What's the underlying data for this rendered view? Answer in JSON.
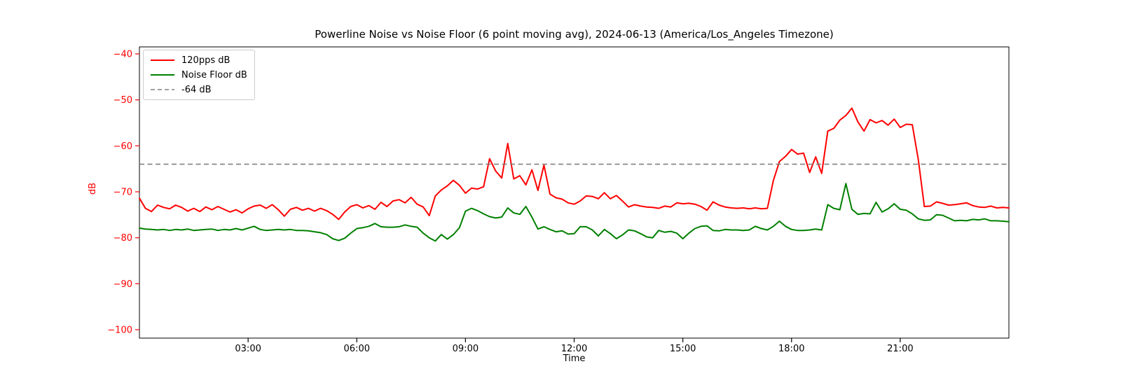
{
  "title": "Powerline Noise vs Noise Floor (6 point moving avg), 2024-06-13 (America/Los_Angeles Timezone)",
  "axes": {
    "x_label": "Time",
    "y_label": "dB",
    "x_ticks": [
      {
        "hour": 3,
        "label": "03:00"
      },
      {
        "hour": 6,
        "label": "06:00"
      },
      {
        "hour": 9,
        "label": "09:00"
      },
      {
        "hour": 12,
        "label": "12:00"
      },
      {
        "hour": 15,
        "label": "15:00"
      },
      {
        "hour": 18,
        "label": "18:00"
      },
      {
        "hour": 21,
        "label": "21:00"
      }
    ],
    "y_ticks": [
      -40,
      -50,
      -60,
      -70,
      -80,
      -90,
      -100
    ],
    "y_tick_color": "#ff0000",
    "x_tick_color": "#000000"
  },
  "legend": {
    "items": [
      {
        "label": "120pps dB",
        "color": "#ff0000",
        "dash": "solid"
      },
      {
        "label": "Noise Floor dB",
        "color": "#008000",
        "dash": "solid"
      },
      {
        "label": "-64 dB",
        "color": "#808080",
        "dash": "dashed"
      }
    ]
  },
  "chart_data": {
    "type": "line",
    "title": "Powerline Noise vs Noise Floor (6 point moving avg), 2024-06-13 (America/Los_Angeles Timezone)",
    "xlabel": "Time",
    "ylabel": "dB",
    "xlim_hours": [
      0,
      24
    ],
    "ylim": [
      -101.8,
      -38.5
    ],
    "grid": false,
    "legend_position": "upper-left",
    "x_start": "00:00",
    "x_interval_minutes": 10,
    "point_count": 145,
    "series": [
      {
        "name": "120pps dB",
        "color": "#ff0000",
        "style": "solid",
        "values": [
          -71.4,
          -73.6,
          -74.3,
          -72.9,
          -73.4,
          -73.7,
          -72.9,
          -73.4,
          -74.2,
          -73.6,
          -74.3,
          -73.3,
          -73.9,
          -73.2,
          -73.8,
          -74.4,
          -73.9,
          -74.6,
          -73.7,
          -73.1,
          -72.9,
          -73.6,
          -72.8,
          -73.9,
          -75.3,
          -73.8,
          -73.4,
          -74.0,
          -73.6,
          -74.2,
          -73.6,
          -74.1,
          -74.9,
          -76.0,
          -74.4,
          -73.2,
          -72.8,
          -73.5,
          -73.0,
          -73.8,
          -72.3,
          -73.2,
          -72.0,
          -71.7,
          -72.4,
          -71.2,
          -72.7,
          -73.3,
          -75.2,
          -70.9,
          -69.6,
          -68.7,
          -67.5,
          -68.6,
          -70.3,
          -69.2,
          -69.4,
          -68.9,
          -62.8,
          -65.5,
          -67.0,
          -59.5,
          -67.2,
          -66.5,
          -68.5,
          -65.2,
          -69.7,
          -64.2,
          -70.5,
          -71.3,
          -71.6,
          -72.4,
          -72.7,
          -72.0,
          -70.9,
          -71.0,
          -71.5,
          -70.2,
          -71.5,
          -70.8,
          -72.0,
          -73.3,
          -72.8,
          -73.1,
          -73.3,
          -73.4,
          -73.6,
          -73.1,
          -73.3,
          -72.4,
          -72.6,
          -72.5,
          -72.7,
          -73.2,
          -74.0,
          -72.2,
          -72.9,
          -73.3,
          -73.5,
          -73.6,
          -73.5,
          -73.7,
          -73.5,
          -73.7,
          -73.6,
          -67.5,
          -63.4,
          -62.3,
          -60.8,
          -61.8,
          -61.6,
          -65.8,
          -62.4,
          -66.0,
          -56.8,
          -56.2,
          -54.4,
          -53.4,
          -51.8,
          -54.8,
          -56.8,
          -54.3,
          -55.0,
          -54.5,
          -55.5,
          -54.2,
          -56.0,
          -55.3,
          -55.4,
          -63.0,
          -73.2,
          -73.1,
          -72.2,
          -72.5,
          -72.9,
          -72.8,
          -72.6,
          -72.4,
          -73.0,
          -73.3,
          -73.4,
          -73.1,
          -73.5,
          -73.4,
          -73.5
        ]
      },
      {
        "name": "Noise Floor dB",
        "color": "#008000",
        "style": "solid",
        "values": [
          -77.9,
          -78.1,
          -78.2,
          -78.3,
          -78.2,
          -78.4,
          -78.2,
          -78.3,
          -78.1,
          -78.4,
          -78.3,
          -78.2,
          -78.1,
          -78.4,
          -78.2,
          -78.3,
          -78.0,
          -78.3,
          -77.9,
          -77.5,
          -78.2,
          -78.4,
          -78.3,
          -78.2,
          -78.3,
          -78.2,
          -78.4,
          -78.4,
          -78.5,
          -78.7,
          -78.9,
          -79.3,
          -80.2,
          -80.6,
          -80.1,
          -79.0,
          -78.0,
          -77.8,
          -77.5,
          -76.9,
          -77.6,
          -77.7,
          -77.7,
          -77.6,
          -77.2,
          -77.5,
          -77.7,
          -79.0,
          -80.0,
          -80.7,
          -79.3,
          -80.3,
          -79.3,
          -77.8,
          -74.2,
          -73.6,
          -74.1,
          -74.8,
          -75.4,
          -75.7,
          -75.5,
          -73.5,
          -74.6,
          -74.9,
          -73.2,
          -75.5,
          -78.1,
          -77.6,
          -78.2,
          -78.7,
          -78.5,
          -79.2,
          -79.1,
          -77.6,
          -77.6,
          -78.3,
          -79.6,
          -78.2,
          -79.1,
          -80.2,
          -79.4,
          -78.3,
          -78.5,
          -79.1,
          -79.8,
          -80.0,
          -78.4,
          -78.8,
          -78.6,
          -79.0,
          -80.2,
          -79.0,
          -78.0,
          -77.5,
          -77.4,
          -78.4,
          -78.5,
          -78.2,
          -78.3,
          -78.3,
          -78.4,
          -78.3,
          -77.5,
          -78.0,
          -78.3,
          -77.5,
          -76.4,
          -77.5,
          -78.2,
          -78.4,
          -78.4,
          -78.3,
          -78.1,
          -78.3,
          -72.8,
          -73.6,
          -73.9,
          -68.2,
          -73.8,
          -74.9,
          -74.7,
          -74.8,
          -72.3,
          -74.4,
          -73.7,
          -72.6,
          -73.8,
          -74.0,
          -74.8,
          -75.9,
          -76.2,
          -76.1,
          -75.0,
          -75.1,
          -75.7,
          -76.3,
          -76.2,
          -76.3,
          -76.0,
          -76.1,
          -75.9,
          -76.3,
          -76.3,
          -76.4,
          -76.5
        ]
      },
      {
        "name": "-64 dB",
        "color": "#808080",
        "style": "dashed",
        "constant": -64
      }
    ]
  }
}
